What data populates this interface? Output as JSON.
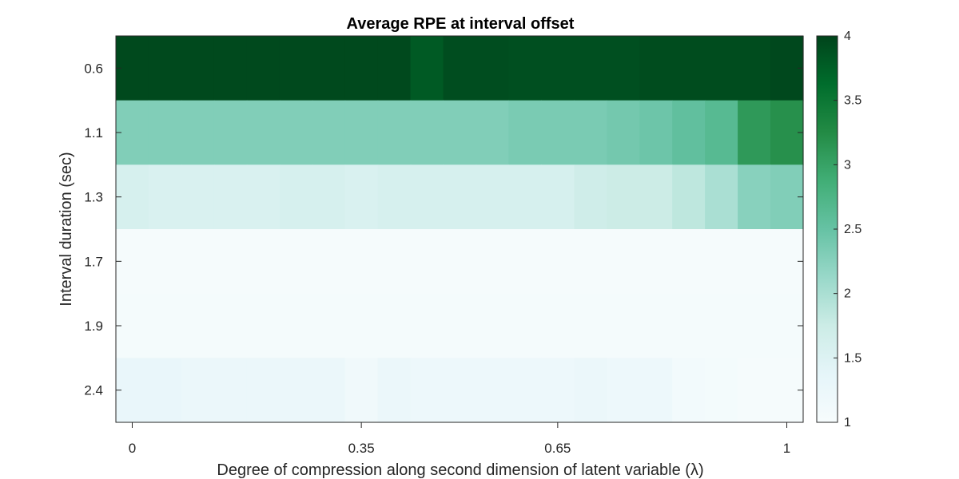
{
  "chart_data": {
    "type": "heatmap",
    "title": "Average RPE at interval offset",
    "xlabel": "Degree of compression along second dimension of latent variable (λ)",
    "ylabel": "Interval duration (sec)",
    "x_tick_labels": [
      "0",
      "0.35",
      "0.65",
      "1"
    ],
    "x_tick_values": [
      0,
      0.35,
      0.65,
      1
    ],
    "lambda_values": [
      0,
      0.05,
      0.1,
      0.15,
      0.2,
      0.25,
      0.3,
      0.35,
      0.4,
      0.45,
      0.5,
      0.55,
      0.6,
      0.65,
      0.7,
      0.75,
      0.8,
      0.85,
      0.9,
      0.95,
      1
    ],
    "y_categories": [
      "0.6",
      "1.1",
      "1.3",
      "1.7",
      "1.9",
      "2.4"
    ],
    "values": [
      [
        3.95,
        3.95,
        3.95,
        3.95,
        3.95,
        3.95,
        3.95,
        3.95,
        3.95,
        3.8,
        3.92,
        3.92,
        3.9,
        3.9,
        3.9,
        3.9,
        3.93,
        3.93,
        3.93,
        3.93,
        3.96
      ],
      [
        2.3,
        2.3,
        2.3,
        2.3,
        2.3,
        2.3,
        2.3,
        2.3,
        2.3,
        2.3,
        2.3,
        2.3,
        2.35,
        2.35,
        2.35,
        2.4,
        2.45,
        2.55,
        2.65,
        3.1,
        3.2
      ],
      [
        1.6,
        1.55,
        1.55,
        1.55,
        1.55,
        1.6,
        1.6,
        1.55,
        1.6,
        1.6,
        1.6,
        1.6,
        1.6,
        1.6,
        1.7,
        1.75,
        1.75,
        1.85,
        2.0,
        2.25,
        2.3
      ],
      [
        1.05,
        1.05,
        1.05,
        1.05,
        1.05,
        1.05,
        1.05,
        1.05,
        1.05,
        1.05,
        1.05,
        1.05,
        1.05,
        1.05,
        1.05,
        1.05,
        1.05,
        1.05,
        1.05,
        1.05,
        1.05
      ],
      [
        1.06,
        1.06,
        1.06,
        1.06,
        1.06,
        1.06,
        1.06,
        1.06,
        1.06,
        1.06,
        1.06,
        1.06,
        1.06,
        1.06,
        1.06,
        1.06,
        1.06,
        1.06,
        1.06,
        1.06,
        1.06
      ],
      [
        1.3,
        1.3,
        1.25,
        1.25,
        1.25,
        1.25,
        1.25,
        1.15,
        1.25,
        1.2,
        1.2,
        1.2,
        1.2,
        1.2,
        1.25,
        1.2,
        1.2,
        1.1,
        1.08,
        1.05,
        1.05
      ]
    ],
    "colorbar": {
      "min": 1,
      "max": 4,
      "tick_values": [
        1,
        1.5,
        2,
        2.5,
        3,
        3.5,
        4
      ],
      "tick_labels": [
        "1",
        "1.5",
        "2",
        "2.5",
        "3",
        "3.5",
        "4"
      ],
      "colors": [
        "#f7fcfd",
        "#e5f5f9",
        "#ccece6",
        "#99d8c9",
        "#66c2a4",
        "#41ae76",
        "#238b45",
        "#006d2c",
        "#00441b"
      ]
    },
    "grid": false,
    "legend": "colorbar-right"
  }
}
